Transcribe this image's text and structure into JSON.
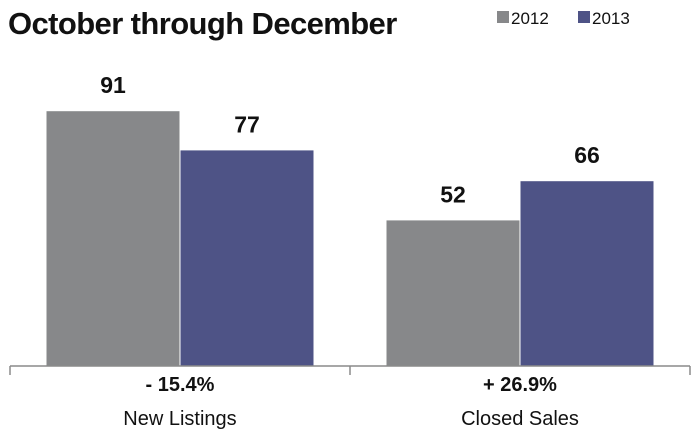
{
  "chart_data": {
    "type": "bar",
    "title": "October through December",
    "categories": [
      "New Listings",
      "Closed Sales"
    ],
    "changes": [
      "- 15.4%",
      "+ 26.9%"
    ],
    "series": [
      {
        "name": "2012",
        "values": [
          91,
          52
        ],
        "color": "#87888a"
      },
      {
        "name": "2013",
        "values": [
          77,
          66
        ],
        "color": "#4e5386"
      }
    ],
    "ylim": [
      0,
      100
    ],
    "grid": false,
    "legend": "top-right"
  },
  "colors": {
    "axis": "#8a8a8a",
    "text": "#111111",
    "background": "#ffffff"
  }
}
